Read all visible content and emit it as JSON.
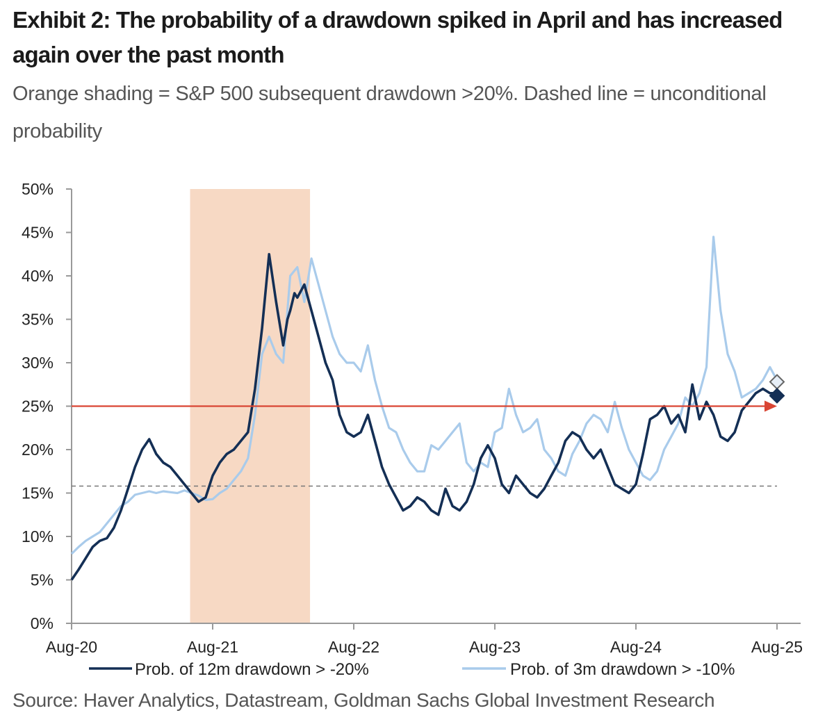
{
  "title": "Exhibit 2: The probability of a drawdown spiked in April and has increased again over the past month",
  "subtitle": "Orange shading = S&P 500 subsequent drawdown >20%. Dashed line = unconditional probability",
  "source": "Source: Haver Analytics, Datastream, Goldman Sachs Global Investment Research",
  "colors": {
    "series_12m": "#142f55",
    "series_3m": "#a9cbeb",
    "shading": "#f7d9c4",
    "arrow": "#d94533",
    "dashed": "#777777",
    "axis": "#999999"
  },
  "chart_data": {
    "type": "line",
    "title": "Exhibit 2: The probability of a drawdown spiked in April and has increased again over the past month",
    "xlabel": "",
    "ylabel": "",
    "x_unit": "years since Aug-20",
    "xlim": [
      0,
      5
    ],
    "ylim": [
      0,
      50
    ],
    "x_ticks": [
      {
        "x": 0,
        "label": "Aug-20"
      },
      {
        "x": 1,
        "label": "Aug-21"
      },
      {
        "x": 2,
        "label": "Aug-22"
      },
      {
        "x": 3,
        "label": "Aug-23"
      },
      {
        "x": 4,
        "label": "Aug-24"
      },
      {
        "x": 5,
        "label": "Aug-25"
      }
    ],
    "y_ticks": [
      {
        "y": 0,
        "label": "0%"
      },
      {
        "y": 5,
        "label": "5%"
      },
      {
        "y": 10,
        "label": "10%"
      },
      {
        "y": 15,
        "label": "15%"
      },
      {
        "y": 20,
        "label": "20%"
      },
      {
        "y": 25,
        "label": "25%"
      },
      {
        "y": 30,
        "label": "30%"
      },
      {
        "y": 35,
        "label": "35%"
      },
      {
        "y": 40,
        "label": "40%"
      },
      {
        "y": 45,
        "label": "45%"
      },
      {
        "y": 50,
        "label": "50%"
      }
    ],
    "shaded_region": {
      "x_start": 0.84,
      "x_end": 1.69,
      "meaning": "S&P 500 subsequent drawdown >20%"
    },
    "unconditional_probability": 15.8,
    "reference_arrow": {
      "y": 25,
      "x_start": 0,
      "x_end": 5.0
    },
    "legend_position": "bottom",
    "series": [
      {
        "name": "Prob. of 12m drawdown > -20%",
        "role": "dark",
        "x": [
          0,
          0.05,
          0.1,
          0.15,
          0.2,
          0.25,
          0.3,
          0.35,
          0.4,
          0.45,
          0.5,
          0.55,
          0.6,
          0.65,
          0.7,
          0.75,
          0.8,
          0.85,
          0.9,
          0.95,
          1.0,
          1.05,
          1.1,
          1.15,
          1.2,
          1.25,
          1.3,
          1.35,
          1.4,
          1.45,
          1.5,
          1.53,
          1.55,
          1.58,
          1.6,
          1.65,
          1.7,
          1.75,
          1.8,
          1.85,
          1.9,
          1.95,
          2.0,
          2.05,
          2.1,
          2.15,
          2.2,
          2.25,
          2.3,
          2.35,
          2.4,
          2.45,
          2.5,
          2.55,
          2.6,
          2.65,
          2.7,
          2.75,
          2.8,
          2.85,
          2.9,
          2.95,
          3.0,
          3.05,
          3.1,
          3.15,
          3.2,
          3.25,
          3.3,
          3.35,
          3.4,
          3.45,
          3.5,
          3.55,
          3.6,
          3.65,
          3.7,
          3.75,
          3.8,
          3.85,
          3.9,
          3.95,
          4.0,
          4.05,
          4.1,
          4.15,
          4.2,
          4.25,
          4.3,
          4.35,
          4.4,
          4.45,
          4.5,
          4.55,
          4.6,
          4.65,
          4.7,
          4.75,
          4.8,
          4.85,
          4.9,
          4.95,
          5.0
        ],
        "values": [
          5,
          6.2,
          7.5,
          8.8,
          9.5,
          9.8,
          11,
          13,
          15.5,
          18,
          20,
          21.2,
          19.5,
          18.5,
          18,
          17,
          16,
          15,
          14,
          14.5,
          17,
          18.5,
          19.5,
          20,
          21,
          22,
          27,
          34,
          42.5,
          37,
          32,
          35,
          36,
          38,
          37.5,
          39,
          36,
          33,
          30,
          28,
          24,
          22,
          21.5,
          22,
          24,
          21,
          18,
          16,
          14.5,
          13,
          13.5,
          14.5,
          14,
          13,
          12.5,
          15.5,
          13.5,
          13,
          14,
          16,
          19,
          20.5,
          19,
          16,
          15,
          17,
          16,
          15,
          14.5,
          15.5,
          17,
          18.5,
          21,
          22,
          21.5,
          20,
          19,
          20,
          18,
          16,
          15.5,
          15,
          16,
          19.5,
          23.5,
          24,
          25,
          23,
          24,
          22,
          27.5,
          23.5,
          25.5,
          24,
          21.5,
          21,
          22,
          24.5,
          25.5,
          26.5,
          27,
          26.5,
          26.5
        ]
      },
      {
        "name": "Prob. of 3m drawdown > -10%",
        "role": "light",
        "x": [
          0,
          0.05,
          0.1,
          0.15,
          0.2,
          0.25,
          0.3,
          0.35,
          0.4,
          0.45,
          0.5,
          0.55,
          0.6,
          0.65,
          0.7,
          0.75,
          0.8,
          0.85,
          0.9,
          0.95,
          1.0,
          1.05,
          1.1,
          1.15,
          1.2,
          1.25,
          1.3,
          1.35,
          1.4,
          1.45,
          1.5,
          1.55,
          1.6,
          1.65,
          1.7,
          1.75,
          1.8,
          1.85,
          1.9,
          1.95,
          2.0,
          2.05,
          2.1,
          2.15,
          2.2,
          2.25,
          2.3,
          2.35,
          2.4,
          2.45,
          2.5,
          2.55,
          2.6,
          2.65,
          2.7,
          2.75,
          2.8,
          2.85,
          2.9,
          2.95,
          3.0,
          3.05,
          3.1,
          3.15,
          3.2,
          3.25,
          3.3,
          3.35,
          3.4,
          3.45,
          3.5,
          3.55,
          3.6,
          3.65,
          3.7,
          3.75,
          3.8,
          3.85,
          3.9,
          3.95,
          4.0,
          4.05,
          4.1,
          4.15,
          4.2,
          4.25,
          4.3,
          4.35,
          4.4,
          4.45,
          4.5,
          4.55,
          4.6,
          4.65,
          4.7,
          4.75,
          4.8,
          4.85,
          4.9,
          4.95,
          5.0
        ],
        "values": [
          8,
          8.8,
          9.5,
          10,
          10.5,
          11.5,
          12.5,
          13.5,
          14,
          14.8,
          15,
          15.2,
          15,
          15.2,
          15.1,
          15,
          15.3,
          15,
          14.7,
          14.2,
          14.3,
          15,
          15.5,
          16.5,
          17.5,
          19,
          24,
          31,
          33,
          31,
          30,
          40,
          41,
          37,
          42,
          39,
          36,
          33,
          31,
          30,
          30,
          29,
          32,
          28,
          25,
          22.5,
          22,
          20,
          18.5,
          17.5,
          17.5,
          20.5,
          20,
          21,
          22,
          23,
          18.5,
          17.5,
          18.5,
          18,
          22,
          22.5,
          27,
          24,
          22,
          22.5,
          23.5,
          20,
          19,
          17.5,
          17,
          19.5,
          21,
          23,
          24,
          23.5,
          22,
          25.5,
          22.5,
          20,
          18.5,
          17,
          16.5,
          17.5,
          20,
          21.5,
          23,
          26,
          25,
          26.5,
          29.5,
          44.5,
          36,
          31,
          29,
          26,
          26.5,
          27,
          28,
          29.5,
          28
        ]
      }
    ],
    "end_markers": [
      {
        "series": "Prob. of 3m drawdown > -10%",
        "x": 5.0,
        "y": 27.8,
        "shape": "diamond"
      },
      {
        "series": "Prob. of 12m drawdown > -20%",
        "x": 5.0,
        "y": 26.2,
        "shape": "diamond"
      }
    ]
  }
}
